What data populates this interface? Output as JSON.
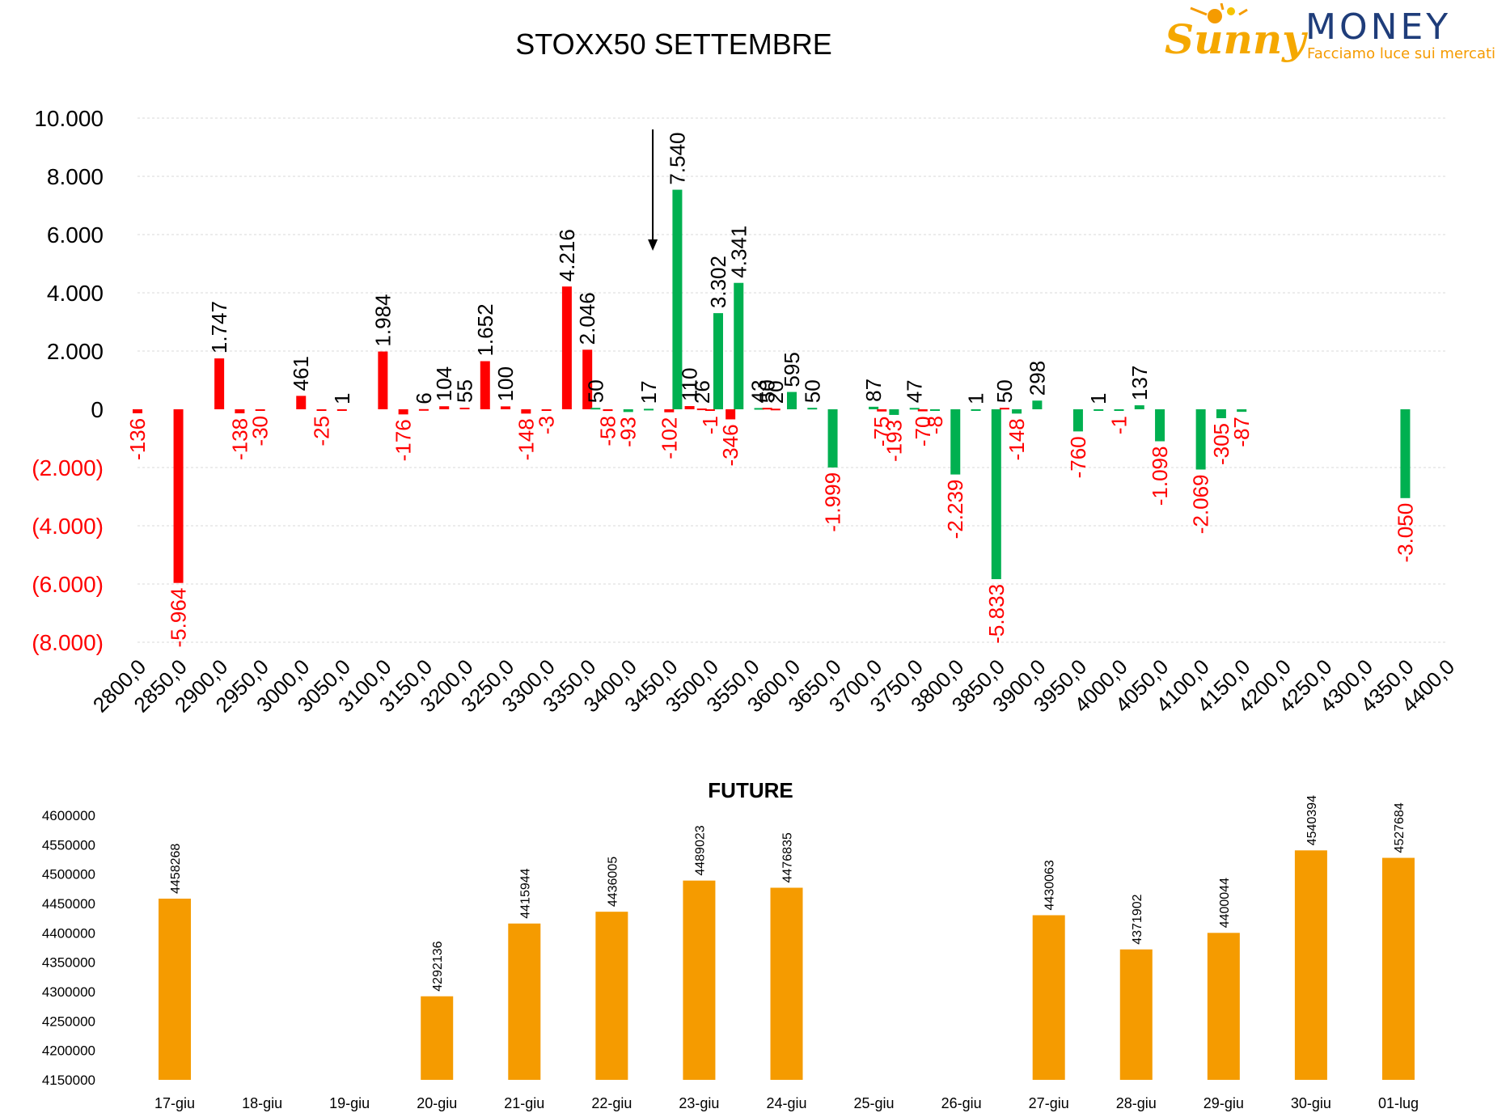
{
  "logo": {
    "brand_word": "Sunny",
    "brand_word2": "MONEY",
    "tagline": "Facciamo luce sui mercati"
  },
  "colors": {
    "call": "#ff0000",
    "put": "#00b050",
    "future": "#f59b00",
    "neg_label": "#ff0000",
    "grid": "#d9d9d9",
    "text": "#000000"
  },
  "chart_data": [
    {
      "type": "bar",
      "title": "STOXX50 SETTEMBRE",
      "ylim": [
        -8000,
        10000
      ],
      "yticks": [
        "10.000",
        "8.000",
        "6.000",
        "4.000",
        "2.000",
        "0",
        "(2.000)",
        "(4.000)",
        "(6.000)",
        "(8.000)"
      ],
      "x_ticks": [
        "2800,0",
        "2850,0",
        "2900,0",
        "2950,0",
        "3000,0",
        "3050,0",
        "3100,0",
        "3150,0",
        "3200,0",
        "3250,0",
        "3300,0",
        "3350,0",
        "3400,0",
        "3450,0",
        "3500,0",
        "3550,0",
        "3600,0",
        "3650,0",
        "3700,0",
        "3750,0",
        "3800,0",
        "3850,0",
        "3900,0",
        "3950,0",
        "4000,0",
        "4050,0",
        "4100,0",
        "4150,0",
        "4200,0",
        "4250,0",
        "4300,0",
        "4350,0",
        "4400,0"
      ],
      "grid": true,
      "annotation_arrow_strike": 3430,
      "bars": [
        {
          "strike": 2800,
          "series": "call",
          "value": -136,
          "label": "-136"
        },
        {
          "strike": 2850,
          "series": "call",
          "value": -5964,
          "label": "-5.964"
        },
        {
          "strike": 2900,
          "series": "call",
          "value": 1747,
          "label": "1.747"
        },
        {
          "strike": 2925,
          "series": "call",
          "value": -138,
          "label": "-138"
        },
        {
          "strike": 2950,
          "series": "call",
          "value": -30,
          "label": "-30"
        },
        {
          "strike": 3000,
          "series": "call",
          "value": 461,
          "label": "461"
        },
        {
          "strike": 3025,
          "series": "call",
          "value": -25,
          "label": "-25"
        },
        {
          "strike": 3050,
          "series": "call",
          "value": 1,
          "label": "1"
        },
        {
          "strike": 3100,
          "series": "call",
          "value": 1984,
          "label": "1.984"
        },
        {
          "strike": 3125,
          "series": "call",
          "value": -176,
          "label": "-176"
        },
        {
          "strike": 3150,
          "series": "call",
          "value": 6,
          "label": "6"
        },
        {
          "strike": 3175,
          "series": "call",
          "value": 104,
          "label": "104"
        },
        {
          "strike": 3200,
          "series": "call",
          "value": 55,
          "label": "55"
        },
        {
          "strike": 3225,
          "series": "call",
          "value": 1652,
          "label": "1.652"
        },
        {
          "strike": 3250,
          "series": "call",
          "value": 100,
          "label": "100"
        },
        {
          "strike": 3275,
          "series": "call",
          "value": -148,
          "label": "-148"
        },
        {
          "strike": 3300,
          "series": "call",
          "value": -3,
          "label": "-3"
        },
        {
          "strike": 3325,
          "series": "call",
          "value": 4216,
          "label": "4.216"
        },
        {
          "strike": 3350,
          "series": "call",
          "value": 2046,
          "label": "2.046"
        },
        {
          "strike": 3360,
          "series": "put",
          "value": 50,
          "label": "50"
        },
        {
          "strike": 3375,
          "series": "call",
          "value": -58,
          "label": "-58"
        },
        {
          "strike": 3400,
          "series": "put",
          "value": -93,
          "label": "-93"
        },
        {
          "strike": 3425,
          "series": "put",
          "value": 17,
          "label": "17"
        },
        {
          "strike": 3450,
          "series": "call",
          "value": -102,
          "label": "-102"
        },
        {
          "strike": 3460,
          "series": "put",
          "value": 7540,
          "label": "7.540"
        },
        {
          "strike": 3475,
          "series": "call",
          "value": 110,
          "label": "110"
        },
        {
          "strike": 3490,
          "series": "call",
          "value": 26,
          "label": "26"
        },
        {
          "strike": 3500,
          "series": "call",
          "value": -1,
          "label": "-1"
        },
        {
          "strike": 3510,
          "series": "put",
          "value": 3302,
          "label": "3.302"
        },
        {
          "strike": 3525,
          "series": "call",
          "value": -346,
          "label": "-346"
        },
        {
          "strike": 3535,
          "series": "put",
          "value": 4341,
          "label": "4.341"
        },
        {
          "strike": 3560,
          "series": "put",
          "value": 43,
          "label": "43"
        },
        {
          "strike": 3570,
          "series": "call",
          "value": 50,
          "label": "50"
        },
        {
          "strike": 3580,
          "series": "call",
          "value": 20,
          "label": "20"
        },
        {
          "strike": 3600,
          "series": "put",
          "value": 595,
          "label": "595"
        },
        {
          "strike": 3625,
          "series": "put",
          "value": 50,
          "label": "50"
        },
        {
          "strike": 3650,
          "series": "put",
          "value": -1999,
          "label": "-1.999"
        },
        {
          "strike": 3700,
          "series": "put",
          "value": 87,
          "label": "87"
        },
        {
          "strike": 3710,
          "series": "call",
          "value": -75,
          "label": "-75"
        },
        {
          "strike": 3725,
          "series": "put",
          "value": -193,
          "label": "-193"
        },
        {
          "strike": 3750,
          "series": "put",
          "value": 47,
          "label": "47"
        },
        {
          "strike": 3760,
          "series": "call",
          "value": -70,
          "label": "-70"
        },
        {
          "strike": 3775,
          "series": "put",
          "value": -8,
          "label": "-8"
        },
        {
          "strike": 3800,
          "series": "put",
          "value": -2239,
          "label": "-2.239"
        },
        {
          "strike": 3825,
          "series": "put",
          "value": 1,
          "label": "1"
        },
        {
          "strike": 3850,
          "series": "put",
          "value": -5833,
          "label": "-5.833"
        },
        {
          "strike": 3860,
          "series": "call",
          "value": 50,
          "label": "50"
        },
        {
          "strike": 3875,
          "series": "put",
          "value": -148,
          "label": "-148"
        },
        {
          "strike": 3900,
          "series": "put",
          "value": 298,
          "label": "298"
        },
        {
          "strike": 3950,
          "series": "put",
          "value": -760,
          "label": "-760"
        },
        {
          "strike": 3975,
          "series": "put",
          "value": 1,
          "label": "1"
        },
        {
          "strike": 4000,
          "series": "put",
          "value": -1,
          "label": "-1"
        },
        {
          "strike": 4025,
          "series": "put",
          "value": 137,
          "label": "137"
        },
        {
          "strike": 4050,
          "series": "put",
          "value": -1098,
          "label": "-1.098"
        },
        {
          "strike": 4100,
          "series": "put",
          "value": -2069,
          "label": "-2.069"
        },
        {
          "strike": 4125,
          "series": "put",
          "value": -305,
          "label": "-305"
        },
        {
          "strike": 4150,
          "series": "put",
          "value": -87,
          "label": "-87"
        },
        {
          "strike": 4350,
          "series": "put",
          "value": -3050,
          "label": "-3.050"
        }
      ]
    },
    {
      "type": "bar",
      "title": "FUTURE",
      "ylim": [
        4150000,
        4600000
      ],
      "yticks": [
        "4600000",
        "4550000",
        "4500000",
        "4450000",
        "4400000",
        "4350000",
        "4300000",
        "4250000",
        "4200000",
        "4150000"
      ],
      "categories": [
        "17-giu",
        "18-giu",
        "19-giu",
        "20-giu",
        "21-giu",
        "22-giu",
        "23-giu",
        "24-giu",
        "25-giu",
        "26-giu",
        "27-giu",
        "28-giu",
        "29-giu",
        "30-giu",
        "01-lug"
      ],
      "values": [
        4458268,
        null,
        null,
        4292136,
        4415944,
        4436005,
        4489023,
        4476835,
        null,
        null,
        4430063,
        4371902,
        4400044,
        4540394,
        4527684
      ],
      "labels": [
        "4458268",
        "",
        "",
        "4292136",
        "4415944",
        "4436005",
        "4489023",
        "4476835",
        "",
        "",
        "4430063",
        "4371902",
        "4400044",
        "4540394",
        "4527684"
      ]
    }
  ]
}
